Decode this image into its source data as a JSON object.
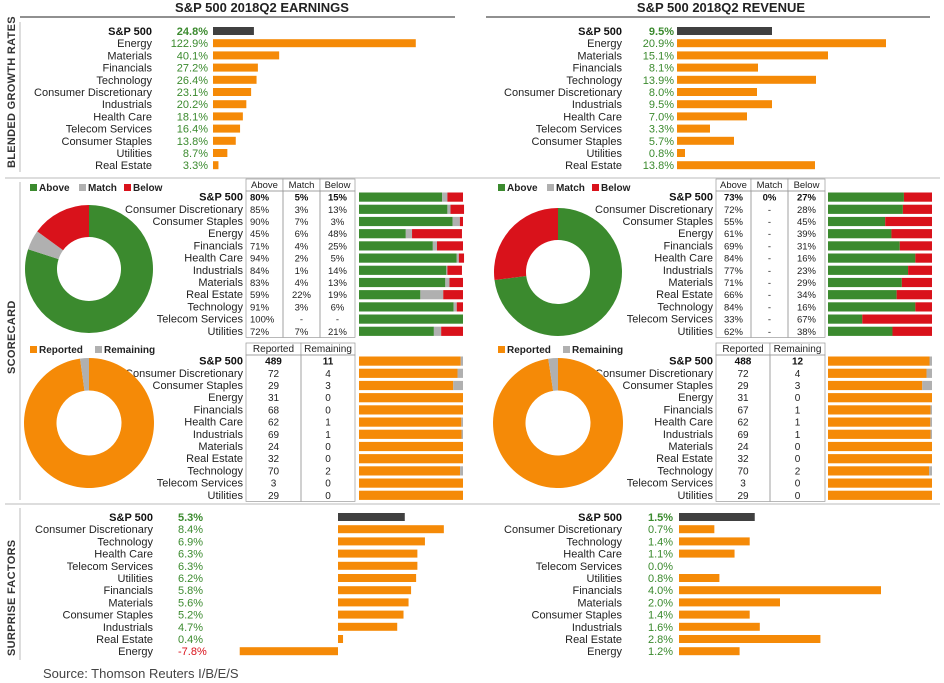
{
  "colors": {
    "orange": "#f58a07",
    "dark": "#404040",
    "green": "#3b8a2e",
    "gray": "#b0b0b0",
    "red": "#d9121b",
    "pos_text": "#3b8a2e",
    "neg_text": "#d9121b"
  },
  "headers": {
    "earnings": "S&P 500 2018Q2 EARNINGS",
    "revenue": "S&P 500 2018Q2 REVENUE"
  },
  "side_labels": {
    "growth": "BLENDED GROWTH RATES",
    "scorecard": "SCORECARD",
    "surprise": "SURPRISE FACTORS"
  },
  "source": "Source: Thomson Reuters I/B/E/S",
  "legends": {
    "above": "Above",
    "match": "Match",
    "below": "Below",
    "reported": "Reported",
    "remaining": "Remaining"
  },
  "table_headers": {
    "above": "Above",
    "match": "Match",
    "below": "Below",
    "reported": "Reported",
    "remaining": "Remaining"
  },
  "chart_data": [
    {
      "id": "earnings_growth",
      "type": "bar",
      "title": "S&P 500 2018Q2 EARNINGS",
      "categories": [
        "S&P 500",
        "Energy",
        "Materials",
        "Financials",
        "Technology",
        "Consumer Discretionary",
        "Industrials",
        "Health Care",
        "Telecom Services",
        "Consumer Staples",
        "Utilities",
        "Real Estate"
      ],
      "values": [
        24.8,
        122.9,
        40.1,
        27.2,
        26.4,
        23.1,
        20.2,
        18.1,
        16.4,
        13.8,
        8.7,
        3.3
      ],
      "labels": [
        "24.8%",
        "122.9%",
        "40.1%",
        "27.2%",
        "26.4%",
        "23.1%",
        "20.2%",
        "18.1%",
        "16.4%",
        "13.8%",
        "8.7%",
        "3.3%"
      ]
    },
    {
      "id": "revenue_growth",
      "type": "bar",
      "title": "S&P 500 2018Q2 REVENUE",
      "categories": [
        "S&P 500",
        "Energy",
        "Materials",
        "Financials",
        "Technology",
        "Consumer Discretionary",
        "Industrials",
        "Health Care",
        "Telecom Services",
        "Consumer Staples",
        "Utilities",
        "Real Estate"
      ],
      "values": [
        9.5,
        20.9,
        15.1,
        8.1,
        13.9,
        8.0,
        9.5,
        7.0,
        3.3,
        5.7,
        0.8,
        13.8
      ],
      "labels": [
        "9.5%",
        "20.9%",
        "15.1%",
        "8.1%",
        "13.9%",
        "8.0%",
        "9.5%",
        "7.0%",
        "3.3%",
        "5.7%",
        "0.8%",
        "13.8%"
      ]
    },
    {
      "id": "earnings_scorecard",
      "type": "table",
      "pie": {
        "above": 80,
        "match": 5,
        "below": 15
      },
      "categories": [
        "S&P 500",
        "Consumer Discretionary",
        "Consumer Staples",
        "Energy",
        "Financials",
        "Health Care",
        "Industrials",
        "Materials",
        "Real Estate",
        "Technology",
        "Telecom Services",
        "Utilities"
      ],
      "above": [
        "80%",
        "85%",
        "90%",
        "45%",
        "71%",
        "94%",
        "84%",
        "83%",
        "59%",
        "91%",
        "100%",
        "72%"
      ],
      "match": [
        "5%",
        "3%",
        "7%",
        "6%",
        "4%",
        "2%",
        "1%",
        "4%",
        "22%",
        "3%",
        "-",
        "7%"
      ],
      "below": [
        "15%",
        "13%",
        "3%",
        "48%",
        "25%",
        "5%",
        "14%",
        "13%",
        "19%",
        "6%",
        "-",
        "21%"
      ]
    },
    {
      "id": "revenue_scorecard",
      "type": "table",
      "pie": {
        "above": 73,
        "match": 0,
        "below": 27
      },
      "categories": [
        "S&P 500",
        "Consumer Discretionary",
        "Consumer Staples",
        "Energy",
        "Financials",
        "Health Care",
        "Industrials",
        "Materials",
        "Real Estate",
        "Technology",
        "Telecom Services",
        "Utilities"
      ],
      "above": [
        "73%",
        "72%",
        "55%",
        "61%",
        "69%",
        "84%",
        "77%",
        "71%",
        "66%",
        "84%",
        "33%",
        "62%"
      ],
      "match": [
        "0%",
        "-",
        "-",
        "-",
        "-",
        "-",
        "-",
        "-",
        "-",
        "-",
        "-",
        "-"
      ],
      "below": [
        "27%",
        "28%",
        "45%",
        "39%",
        "31%",
        "16%",
        "23%",
        "29%",
        "34%",
        "16%",
        "67%",
        "38%"
      ]
    },
    {
      "id": "earnings_reported",
      "type": "table",
      "pie": {
        "reported": 489,
        "remaining": 11
      },
      "categories": [
        "S&P 500",
        "Consumer Discretionary",
        "Consumer Staples",
        "Energy",
        "Financials",
        "Health Care",
        "Industrials",
        "Materials",
        "Real Estate",
        "Technology",
        "Telecom Services",
        "Utilities"
      ],
      "reported": [
        489,
        72,
        29,
        31,
        68,
        62,
        69,
        24,
        32,
        70,
        3,
        29
      ],
      "remaining": [
        11,
        4,
        3,
        0,
        0,
        1,
        1,
        0,
        0,
        2,
        0,
        0
      ]
    },
    {
      "id": "revenue_reported",
      "type": "table",
      "pie": {
        "reported": 488,
        "remaining": 12
      },
      "categories": [
        "S&P 500",
        "Consumer Discretionary",
        "Consumer Staples",
        "Energy",
        "Financials",
        "Health Care",
        "Industrials",
        "Materials",
        "Real Estate",
        "Technology",
        "Telecom Services",
        "Utilities"
      ],
      "reported": [
        488,
        72,
        29,
        31,
        67,
        62,
        69,
        24,
        32,
        70,
        3,
        29
      ],
      "remaining": [
        12,
        4,
        3,
        0,
        1,
        1,
        1,
        0,
        0,
        2,
        0,
        0
      ]
    },
    {
      "id": "earnings_surprise",
      "type": "bar",
      "categories": [
        "S&P 500",
        "Consumer Discretionary",
        "Technology",
        "Health Care",
        "Telecom Services",
        "Utilities",
        "Financials",
        "Materials",
        "Consumer Staples",
        "Industrials",
        "Real Estate",
        "Energy"
      ],
      "values": [
        5.3,
        8.4,
        6.9,
        6.3,
        6.3,
        6.2,
        5.8,
        5.6,
        5.2,
        4.7,
        0.4,
        -7.8
      ],
      "labels": [
        "5.3%",
        "8.4%",
        "6.9%",
        "6.3%",
        "6.3%",
        "6.2%",
        "5.8%",
        "5.6%",
        "5.2%",
        "4.7%",
        "0.4%",
        "-7.8%"
      ]
    },
    {
      "id": "revenue_surprise",
      "type": "bar",
      "categories": [
        "S&P 500",
        "Consumer Discretionary",
        "Technology",
        "Health Care",
        "Telecom Services",
        "Utilities",
        "Financials",
        "Materials",
        "Consumer Staples",
        "Industrials",
        "Real Estate",
        "Energy"
      ],
      "values": [
        1.5,
        0.7,
        1.4,
        1.1,
        0.0,
        0.8,
        4.0,
        2.0,
        1.4,
        1.6,
        2.8,
        1.2
      ],
      "labels": [
        "1.5%",
        "0.7%",
        "1.4%",
        "1.1%",
        "0.0%",
        "0.8%",
        "4.0%",
        "2.0%",
        "1.4%",
        "1.6%",
        "2.8%",
        "1.2%"
      ]
    }
  ]
}
